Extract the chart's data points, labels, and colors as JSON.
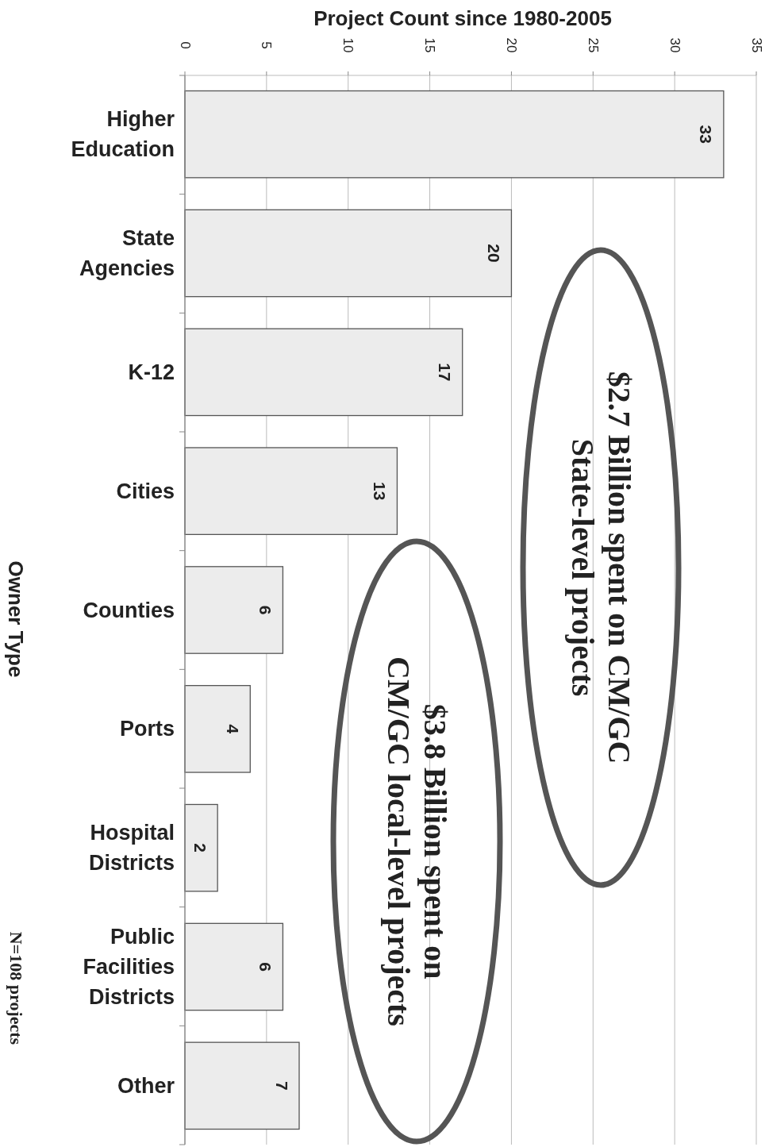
{
  "chart_data": {
    "type": "bar",
    "orientation": "horizontal",
    "xlabel": "Project Count since 1980-2005",
    "ylabel": "Owner Type",
    "categories": [
      "Higher Education",
      "State Agencies",
      "K-12",
      "Cities",
      "Counties",
      "Ports",
      "Hospital Districts",
      "Public Facilities Districts",
      "Other"
    ],
    "values": [
      33,
      20,
      17,
      13,
      6,
      4,
      2,
      6,
      7
    ],
    "color": "#ececec",
    "data_labels": true,
    "xlim": [
      0,
      35
    ],
    "xticks": [
      0,
      5,
      10,
      15,
      20,
      25,
      30,
      35
    ],
    "grid": "x",
    "annotations": [
      "$2.7 Billion spent on CM/GC\nState-level projects",
      "$3.8 Billion spent on\nCM/GC local-level projects",
      "N=108 projects"
    ]
  }
}
